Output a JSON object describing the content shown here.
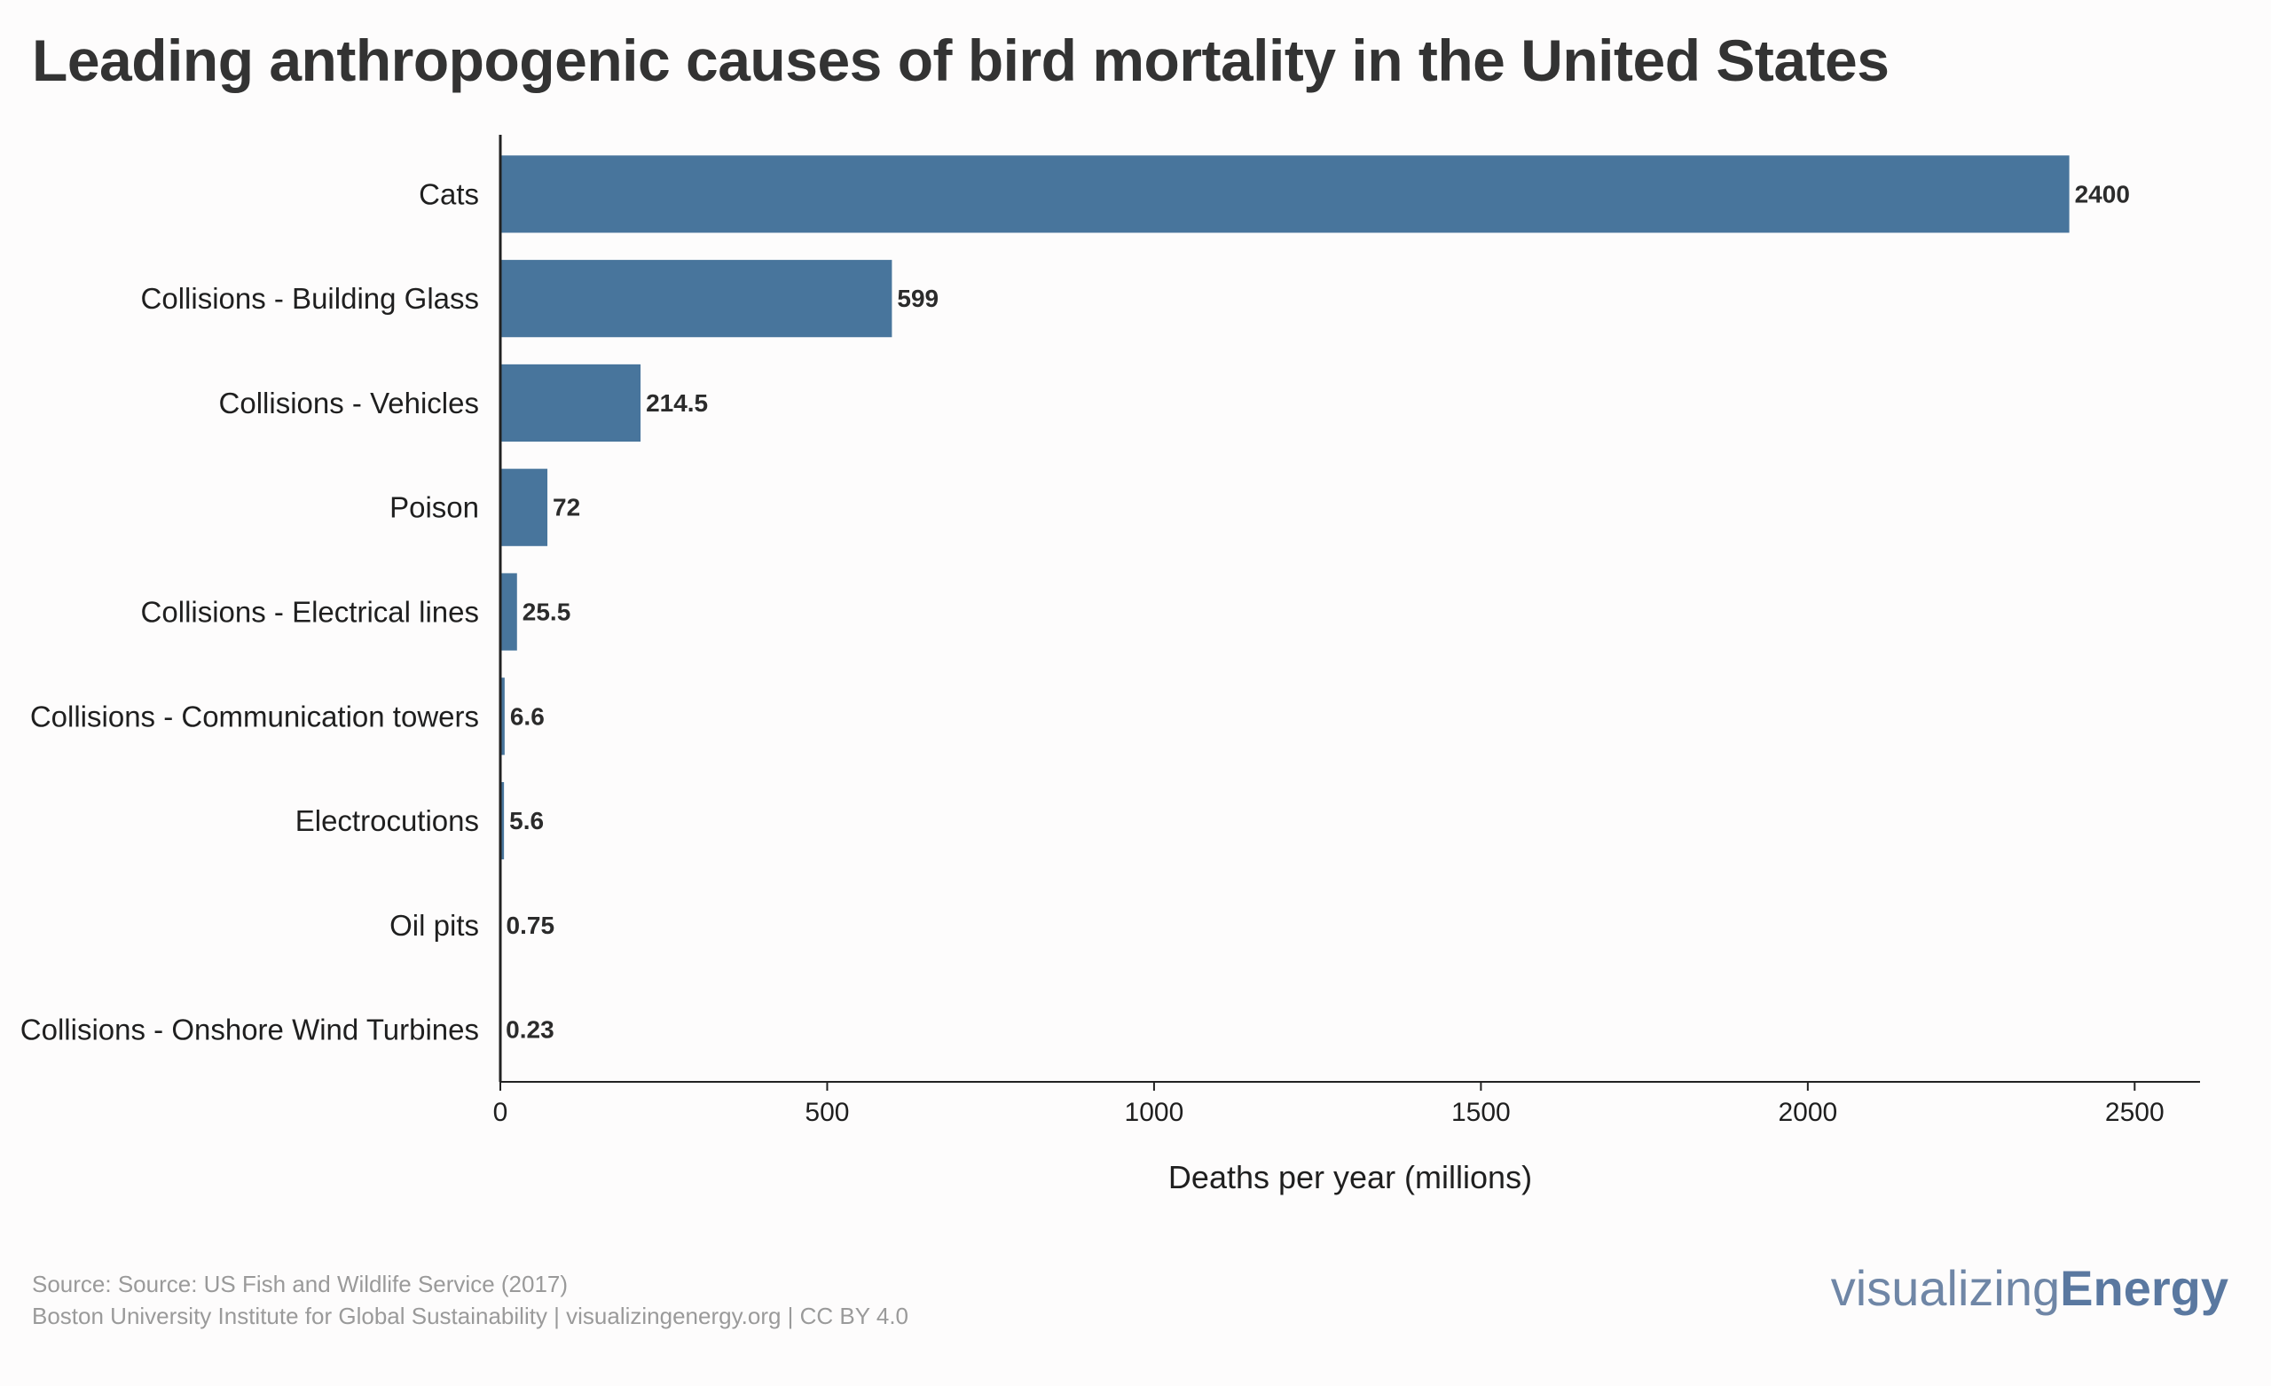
{
  "title": "Leading anthropogenic causes of bird mortality in the United States",
  "footer": {
    "source": "Source: Source: US Fish and Wildlife Service (2017)",
    "credit": "Boston University Institute for Global Sustainability | visualizingenergy.org | CC BY 4.0"
  },
  "logo": {
    "light": "visualizing",
    "bold": "Energy"
  },
  "colors": {
    "bar": "#48759c",
    "axis": "#222222"
  },
  "chart_data": {
    "type": "bar",
    "orientation": "horizontal",
    "title": "Leading anthropogenic causes of bird mortality in the United States",
    "categories": [
      "Cats",
      "Collisions - Building Glass",
      "Collisions - Vehicles",
      "Poison",
      "Collisions - Electrical lines",
      "Collisions - Communication towers",
      "Electrocutions",
      "Oil pits",
      "Collisions - Onshore Wind Turbines"
    ],
    "values": [
      2400,
      599,
      214.5,
      72,
      25.5,
      6.6,
      5.6,
      0.75,
      0.23
    ],
    "value_labels": [
      "2400",
      "599",
      "214.5",
      "72",
      "25.5",
      "6.6",
      "5.6",
      "0.75",
      "0.23"
    ],
    "xlabel": "Deaths per year (millions)",
    "ylabel": "",
    "xlim": [
      0,
      2600
    ],
    "xticks": [
      0,
      500,
      1000,
      1500,
      2000,
      2500
    ],
    "grid": false,
    "legend": "none"
  }
}
